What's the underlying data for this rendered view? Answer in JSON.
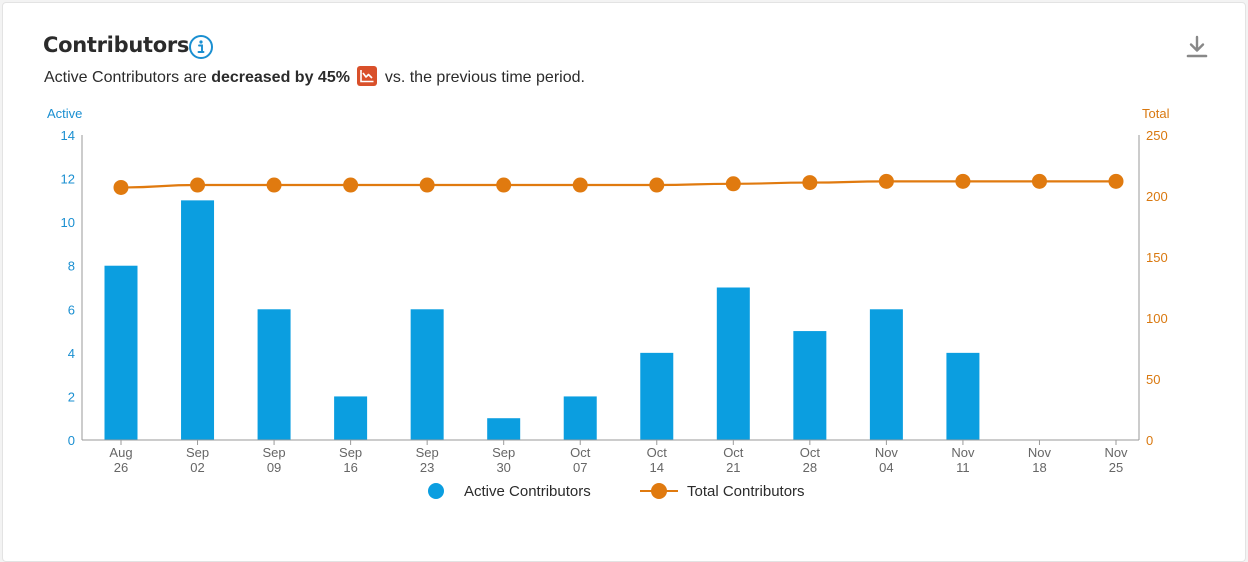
{
  "header": {
    "title": "Contributors",
    "subtitle_prefix": "Active Contributors are",
    "subtitle_bold": "decreased by 45%",
    "subtitle_suffix": "vs. the previous time period."
  },
  "colors": {
    "active": "#0b9ee0",
    "total": "#e07a0f",
    "trend_badge": "#d9502a"
  },
  "chart_data": {
    "type": "bar",
    "categories": [
      [
        "Aug",
        "26"
      ],
      [
        "Sep",
        "02"
      ],
      [
        "Sep",
        "09"
      ],
      [
        "Sep",
        "16"
      ],
      [
        "Sep",
        "23"
      ],
      [
        "Sep",
        "30"
      ],
      [
        "Oct",
        "07"
      ],
      [
        "Oct",
        "14"
      ],
      [
        "Oct",
        "21"
      ],
      [
        "Oct",
        "28"
      ],
      [
        "Nov",
        "04"
      ],
      [
        "Nov",
        "11"
      ],
      [
        "Nov",
        "18"
      ],
      [
        "Nov",
        "25"
      ]
    ],
    "series": [
      {
        "name": "Active Contributors",
        "type": "bar",
        "axis": "left",
        "values": [
          8,
          11,
          6,
          2,
          6,
          1,
          2,
          4,
          7,
          5,
          6,
          4,
          0,
          0
        ]
      },
      {
        "name": "Total Contributors",
        "type": "line",
        "axis": "right",
        "values": [
          207,
          209,
          209,
          209,
          209,
          209,
          209,
          209,
          210,
          211,
          212,
          212,
          212,
          212
        ]
      }
    ],
    "ylabel_left": "Active",
    "ylabel_right": "Total",
    "ylim_left": [
      0,
      14
    ],
    "yticks_left": [
      0,
      2,
      4,
      6,
      8,
      10,
      12,
      14
    ],
    "ylim_right": [
      0,
      250
    ],
    "yticks_right": [
      0,
      50,
      100,
      150,
      200,
      250
    ],
    "legend_position": "bottom-center",
    "grid": false
  }
}
